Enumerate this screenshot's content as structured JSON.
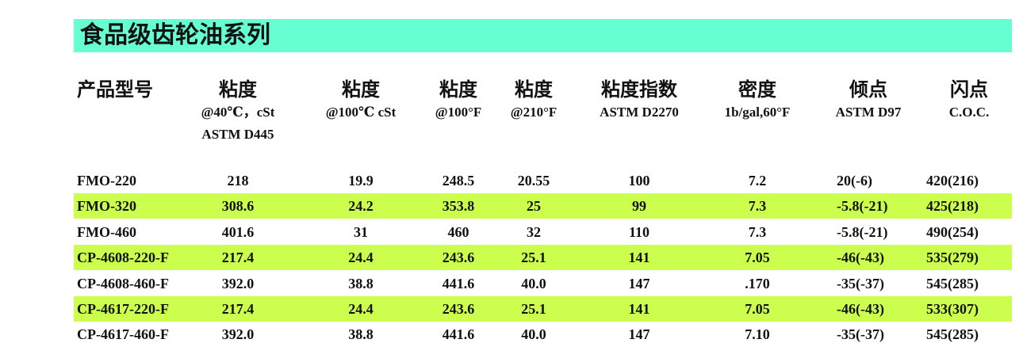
{
  "title": "食品级齿轮油系列",
  "headers": [
    {
      "cn": "产品型号",
      "sub": "",
      "sub2": ""
    },
    {
      "cn": "粘度",
      "sub": "@40℃，cSt",
      "sub2": "ASTM D445"
    },
    {
      "cn": "粘度",
      "sub": "@100℃ cSt",
      "sub2": ""
    },
    {
      "cn": "粘度",
      "sub": "@100°F",
      "sub2": ""
    },
    {
      "cn": "粘度",
      "sub": "@210°F",
      "sub2": ""
    },
    {
      "cn": "粘度指数",
      "sub": "ASTM D2270",
      "sub2": ""
    },
    {
      "cn": "密度",
      "sub": "1b/gal,60°F",
      "sub2": ""
    },
    {
      "cn": "倾点",
      "sub": "ASTM D97",
      "sub2": ""
    },
    {
      "cn": "闪点",
      "sub": "C.O.C.",
      "sub2": ""
    }
  ],
  "rows": [
    [
      "FMO-220",
      "218",
      "19.9",
      "248.5",
      "20.55",
      "100",
      "7.2",
      "20(-6)",
      "420(216)"
    ],
    [
      "FMO-320",
      "308.6",
      "24.2",
      "353.8",
      "25",
      "99",
      "7.3",
      "-5.8(-21)",
      "425(218)"
    ],
    [
      "FMO-460",
      "401.6",
      "31",
      "460",
      "32",
      "110",
      "7.3",
      "-5.8(-21)",
      "490(254)"
    ],
    [
      "CP-4608-220-F",
      "217.4",
      "24.4",
      "243.6",
      "25.1",
      "141",
      "7.05",
      "-46(-43)",
      "535(279)"
    ],
    [
      "CP-4608-460-F",
      "392.0",
      "38.8",
      "441.6",
      "40.0",
      "147",
      ".170",
      "-35(-37)",
      "545(285)"
    ],
    [
      "CP-4617-220-F",
      "217.4",
      "24.4",
      "243.6",
      "25.1",
      "141",
      "7.05",
      "-46(-43)",
      "533(307)"
    ],
    [
      "CP-4617-460-F",
      "392.0",
      "38.8",
      "441.6",
      "40.0",
      "147",
      "7.10",
      "-35(-37)",
      "545(285)"
    ]
  ],
  "highlight_rows": [
    1,
    3,
    5
  ],
  "colors": {
    "title_bg": "#66ffd2",
    "highlight": "#ccff4d"
  }
}
